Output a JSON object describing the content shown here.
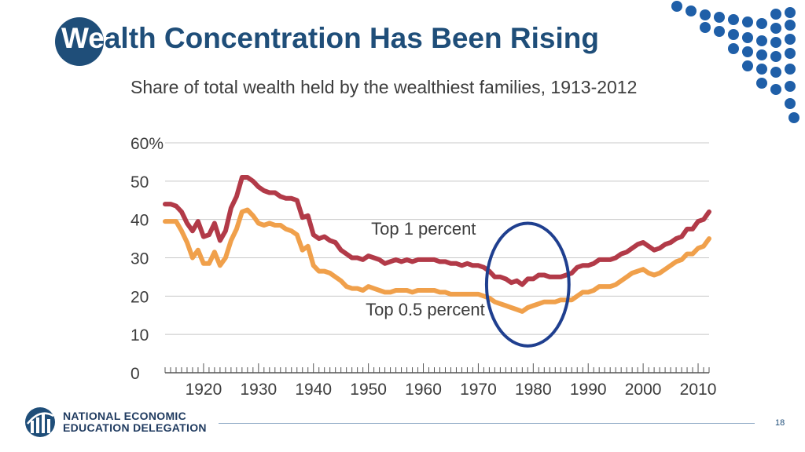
{
  "slide": {
    "title_first": "We",
    "title_rest": "alth Concentration Has Been Rising",
    "org_line1": "NATIONAL ECONOMIC",
    "org_line2": "EDUCATION DELEGATION",
    "page_number": "18"
  },
  "colors": {
    "brand_blue": "#1f4e79",
    "dot_blue": "#1f5fa8",
    "top1": "#b23a48",
    "top05": "#f0a04b",
    "grid": "#c8c8c8",
    "text": "#3d3d3d",
    "highlight": "#1f3f8f"
  },
  "chart_data": {
    "type": "line",
    "title": "Share of total wealth held by the wealthiest families, 1913-2012",
    "xlabel": "",
    "ylabel": "",
    "xlim": [
      1913,
      2012
    ],
    "ylim": [
      0,
      60
    ],
    "y_ticks": [
      {
        "value": 0,
        "label": "0"
      },
      {
        "value": 10,
        "label": "10"
      },
      {
        "value": 20,
        "label": "20"
      },
      {
        "value": 30,
        "label": "30"
      },
      {
        "value": 40,
        "label": "40"
      },
      {
        "value": 50,
        "label": "50"
      },
      {
        "value": 60,
        "label": "60%"
      }
    ],
    "x_ticks": [
      1920,
      1930,
      1940,
      1950,
      1960,
      1970,
      1980,
      1990,
      2000,
      2010
    ],
    "series": [
      {
        "name": "Top 1 percent",
        "label": "Top 1 percent",
        "color": "#b23a48",
        "label_at": [
          1950.5,
          36
        ],
        "x": [
          1913,
          1914,
          1915,
          1916,
          1917,
          1918,
          1919,
          1920,
          1921,
          1922,
          1923,
          1924,
          1925,
          1926,
          1927,
          1928,
          1929,
          1930,
          1931,
          1932,
          1933,
          1934,
          1935,
          1936,
          1937,
          1938,
          1939,
          1940,
          1941,
          1942,
          1943,
          1944,
          1945,
          1946,
          1947,
          1948,
          1949,
          1950,
          1951,
          1952,
          1953,
          1954,
          1955,
          1956,
          1957,
          1958,
          1959,
          1960,
          1961,
          1962,
          1963,
          1964,
          1965,
          1966,
          1967,
          1968,
          1969,
          1970,
          1971,
          1972,
          1973,
          1974,
          1975,
          1976,
          1977,
          1978,
          1979,
          1980,
          1981,
          1982,
          1983,
          1984,
          1985,
          1986,
          1987,
          1988,
          1989,
          1990,
          1991,
          1992,
          1993,
          1994,
          1995,
          1996,
          1997,
          1998,
          1999,
          2000,
          2001,
          2002,
          2003,
          2004,
          2005,
          2006,
          2007,
          2008,
          2009,
          2010,
          2011,
          2012
        ],
        "values": [
          44,
          44,
          43.5,
          42,
          39,
          37,
          39.5,
          35.5,
          36,
          39,
          34.5,
          37,
          43,
          46,
          51,
          51,
          50,
          48.5,
          47.5,
          47,
          47,
          46,
          45.5,
          45.5,
          45,
          40.5,
          41,
          36,
          35,
          35.5,
          34.5,
          34,
          32,
          31,
          30,
          30,
          29.5,
          30.5,
          30,
          29.5,
          28.5,
          29,
          29.5,
          29,
          29.5,
          29,
          29.5,
          29.5,
          29.5,
          29.5,
          29,
          29,
          28.5,
          28.5,
          28,
          28.5,
          28,
          28,
          27.5,
          26.5,
          25,
          25,
          24.5,
          23.5,
          24,
          23,
          24.5,
          24.5,
          25.5,
          25.5,
          25,
          25,
          25,
          25.5,
          26,
          27.5,
          28,
          28,
          28.5,
          29.5,
          29.5,
          29.5,
          30,
          31,
          31.5,
          32.5,
          33.5,
          34,
          33,
          32,
          32.5,
          33.5,
          34,
          35,
          35.5,
          37.5,
          37.5,
          39.5,
          40,
          42
        ]
      },
      {
        "name": "Top 0.5 percent",
        "label": "Top 0.5 percent",
        "color": "#f0a04b",
        "label_at": [
          1949.5,
          15
        ],
        "x": [
          1913,
          1914,
          1915,
          1916,
          1917,
          1918,
          1919,
          1920,
          1921,
          1922,
          1923,
          1924,
          1925,
          1926,
          1927,
          1928,
          1929,
          1930,
          1931,
          1932,
          1933,
          1934,
          1935,
          1936,
          1937,
          1938,
          1939,
          1940,
          1941,
          1942,
          1943,
          1944,
          1945,
          1946,
          1947,
          1948,
          1949,
          1950,
          1951,
          1952,
          1953,
          1954,
          1955,
          1956,
          1957,
          1958,
          1959,
          1960,
          1961,
          1962,
          1963,
          1964,
          1965,
          1966,
          1967,
          1968,
          1969,
          1970,
          1971,
          1972,
          1973,
          1974,
          1975,
          1976,
          1977,
          1978,
          1979,
          1980,
          1981,
          1982,
          1983,
          1984,
          1985,
          1986,
          1987,
          1988,
          1989,
          1990,
          1991,
          1992,
          1993,
          1994,
          1995,
          1996,
          1997,
          1998,
          1999,
          2000,
          2001,
          2002,
          2003,
          2004,
          2005,
          2006,
          2007,
          2008,
          2009,
          2010,
          2011,
          2012
        ],
        "values": [
          39.5,
          39.5,
          39.5,
          37,
          34,
          30,
          32,
          28.5,
          28.5,
          31.5,
          28,
          30,
          34.5,
          37.5,
          42,
          42.5,
          41,
          39,
          38.5,
          39,
          38.5,
          38.5,
          37.5,
          37,
          36,
          32,
          33,
          28,
          26.5,
          26.5,
          26,
          25,
          24,
          22.5,
          22,
          22,
          21.5,
          22.5,
          22,
          21.5,
          21,
          21,
          21.5,
          21.5,
          21.5,
          21,
          21.5,
          21.5,
          21.5,
          21.5,
          21,
          21,
          20.5,
          20.5,
          20.5,
          20.5,
          20.5,
          20.5,
          20,
          19.5,
          18.5,
          18,
          17.5,
          17,
          16.5,
          16,
          17,
          17.5,
          18,
          18.5,
          18.5,
          18.5,
          19,
          19,
          19,
          20,
          21,
          21,
          21.5,
          22.5,
          22.5,
          22.5,
          23,
          24,
          25,
          26,
          26.5,
          27,
          26,
          25.5,
          26,
          27,
          28,
          29,
          29.5,
          31,
          31,
          32.5,
          33,
          35
        ]
      }
    ],
    "annotations": [
      {
        "type": "ellipse",
        "description": "highlight around 1975-1985 low",
        "center": [
          1979,
          23
        ],
        "radii_data": [
          7.5,
          16
        ]
      }
    ]
  }
}
